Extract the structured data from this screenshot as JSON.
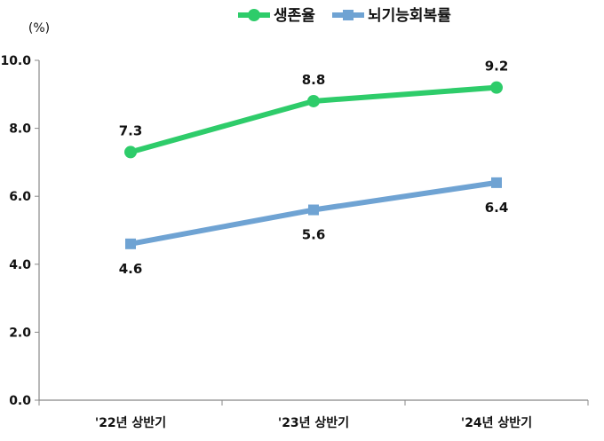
{
  "chart_data": {
    "type": "line",
    "unit": "(%)",
    "categories": [
      "'22년 상반기",
      "'23년 상반기",
      "'24년 상반기"
    ],
    "ylim": [
      0,
      10
    ],
    "yticks": [
      "0.0",
      "2.0",
      "4.0",
      "6.0",
      "8.0",
      "10.0"
    ],
    "grid": false,
    "legend_position": "top-center",
    "series": [
      {
        "name": "생존율",
        "values": [
          7.3,
          8.8,
          9.2
        ],
        "labels": [
          "7.3",
          "8.8",
          "9.2"
        ],
        "color": "#2ecc6a",
        "marker": "circle",
        "label_position": "above"
      },
      {
        "name": "뇌기능회복률",
        "values": [
          4.6,
          5.6,
          6.4
        ],
        "labels": [
          "4.6",
          "5.6",
          "6.4"
        ],
        "color": "#6fa3d3",
        "marker": "square",
        "label_position": "below"
      }
    ]
  }
}
